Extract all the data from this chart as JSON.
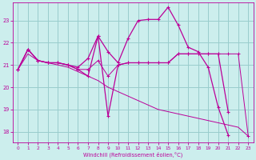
{
  "xlabel": "Windchill (Refroidissement éolien,°C)",
  "background_color": "#cceeed",
  "grid_color": "#99cccc",
  "line_color": "#bb0099",
  "xlim": [
    -0.5,
    23.5
  ],
  "ylim": [
    17.5,
    23.8
  ],
  "yticks": [
    18,
    19,
    20,
    21,
    22,
    23
  ],
  "xticks": [
    0,
    1,
    2,
    3,
    4,
    5,
    6,
    7,
    8,
    9,
    10,
    11,
    12,
    13,
    14,
    15,
    16,
    17,
    18,
    19,
    20,
    21,
    22,
    23
  ],
  "s1_x": [
    0,
    1,
    2,
    3,
    4,
    5,
    6,
    7,
    8,
    9,
    10,
    11,
    12,
    13,
    14,
    15,
    16,
    17,
    18,
    19,
    20,
    21
  ],
  "s1_y": [
    20.8,
    21.7,
    21.2,
    21.1,
    21.1,
    21.0,
    20.9,
    21.3,
    22.3,
    21.6,
    21.1,
    22.2,
    23.0,
    23.05,
    23.05,
    23.6,
    22.8,
    21.8,
    21.6,
    20.9,
    19.1,
    17.85
  ],
  "s2_x": [
    0,
    1,
    2,
    3,
    4,
    5,
    6,
    7,
    8,
    9,
    10,
    11,
    12,
    13,
    14,
    15,
    16,
    17,
    18,
    19,
    20,
    21
  ],
  "s2_y": [
    20.8,
    21.7,
    21.2,
    21.1,
    21.1,
    21.0,
    20.8,
    20.5,
    22.3,
    18.7,
    21.0,
    21.1,
    21.1,
    21.1,
    21.1,
    21.1,
    21.5,
    21.5,
    21.5,
    21.5,
    21.5,
    18.9
  ],
  "s3_x": [
    0,
    1,
    2,
    3,
    4,
    5,
    6,
    7,
    8,
    9,
    10,
    11,
    12,
    13,
    14,
    15,
    16,
    17,
    18,
    19,
    20,
    21,
    22,
    23
  ],
  "s3_y": [
    20.8,
    21.7,
    21.2,
    21.1,
    21.1,
    21.0,
    20.8,
    20.8,
    21.2,
    20.5,
    21.0,
    21.1,
    21.1,
    21.1,
    21.1,
    21.1,
    21.5,
    21.5,
    21.5,
    21.5,
    21.5,
    21.5,
    21.5,
    17.8
  ],
  "s4_x": [
    0,
    1,
    2,
    3,
    4,
    5,
    6,
    7,
    8,
    9,
    10,
    11,
    12,
    13,
    14,
    15,
    16,
    17,
    18,
    19,
    20,
    21,
    22,
    23
  ],
  "s4_y": [
    20.8,
    21.5,
    21.2,
    21.1,
    21.0,
    20.9,
    20.7,
    20.5,
    20.3,
    20.0,
    19.8,
    19.6,
    19.4,
    19.2,
    19.0,
    18.9,
    18.8,
    18.7,
    18.6,
    18.5,
    18.4,
    18.3,
    18.2,
    17.8
  ]
}
